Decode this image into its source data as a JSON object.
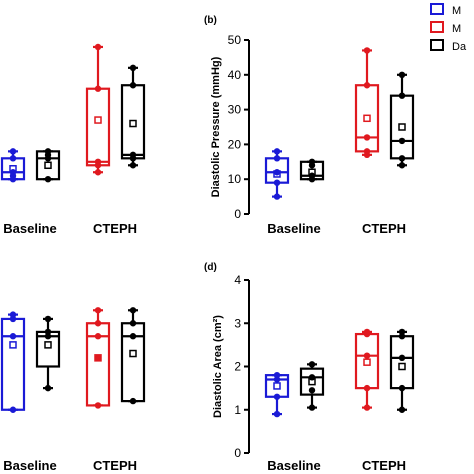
{
  "legend": {
    "entries": [
      {
        "label": "M",
        "color": "#1a1ad6"
      },
      {
        "label": "M",
        "color": "#e0191f"
      },
      {
        "label": "Da",
        "color": "#000000"
      }
    ]
  },
  "colors": {
    "blue": "#1a1ad6",
    "red": "#e0191f",
    "black": "#000000"
  },
  "chart_data": [
    {
      "panel": "",
      "type": "box",
      "ylabel": "",
      "categories": [
        "Baseline",
        "CTEPH"
      ],
      "show_y_axis": false,
      "ylim": [
        0,
        50
      ],
      "series": [
        {
          "color": "#1a1ad6",
          "boxes": [
            {
              "min": 10,
              "q1": 10,
              "median": 12,
              "q3": 16,
              "max": 18,
              "mean": 13,
              "points": [
                10,
                11,
                12,
                16,
                18
              ]
            },
            null
          ]
        },
        {
          "color": "#e0191f",
          "boxes": [
            null,
            {
              "min": 12,
              "q1": 14,
              "median": 15,
              "q3": 36,
              "max": 48,
              "mean": 27,
              "points": [
                12,
                14,
                15,
                36,
                48
              ]
            }
          ]
        },
        {
          "color": "#000000",
          "boxes": [
            {
              "min": 10,
              "q1": 10,
              "median": 16,
              "q3": 18,
              "max": 18,
              "mean": 14,
              "points": [
                10,
                16,
                17,
                18
              ]
            },
            {
              "min": 14,
              "q1": 16,
              "median": 17,
              "q3": 37,
              "max": 42,
              "mean": 26,
              "points": [
                14,
                16,
                17,
                37,
                42
              ]
            }
          ]
        }
      ]
    },
    {
      "panel": "(b)",
      "type": "box",
      "ylabel": "Diastolic Pressure (mmHg)",
      "categories": [
        "Baseline",
        "CTEPH"
      ],
      "show_y_axis": true,
      "ylim": [
        0,
        50
      ],
      "yticks": [
        0,
        10,
        20,
        30,
        40,
        50
      ],
      "series": [
        {
          "color": "#1a1ad6",
          "boxes": [
            {
              "min": 5,
              "q1": 9,
              "median": 12,
              "q3": 16,
              "max": 18,
              "mean": 11.5,
              "points": [
                5,
                9,
                12,
                16,
                18
              ]
            },
            null
          ]
        },
        {
          "color": "#e0191f",
          "boxes": [
            null,
            {
              "min": 17,
              "q1": 18,
              "median": 22,
              "q3": 37,
              "max": 47,
              "mean": 27.5,
              "points": [
                17,
                18,
                22,
                37,
                47
              ]
            }
          ]
        },
        {
          "color": "#000000",
          "boxes": [
            {
              "min": 10,
              "q1": 10,
              "median": 11,
              "q3": 15,
              "max": 15,
              "mean": 12,
              "points": [
                10,
                11,
                14,
                15
              ]
            },
            {
              "min": 14,
              "q1": 16,
              "median": 21,
              "q3": 34,
              "max": 40,
              "mean": 25,
              "points": [
                14,
                16,
                21,
                34,
                40
              ]
            }
          ]
        }
      ]
    },
    {
      "panel": "",
      "type": "box",
      "ylabel": "",
      "categories": [
        "Baseline",
        "CTEPH"
      ],
      "show_y_axis": false,
      "ylim": [
        0,
        4
      ],
      "series": [
        {
          "color": "#1a1ad6",
          "boxes": [
            {
              "min": 1.0,
              "q1": 1.0,
              "median": 2.7,
              "q3": 3.1,
              "max": 3.2,
              "mean": 2.5,
              "points": [
                1.0,
                2.7,
                3.1,
                3.2
              ]
            },
            null
          ]
        },
        {
          "color": "#e0191f",
          "boxes": [
            null,
            {
              "min": 1.1,
              "q1": 1.1,
              "median": 2.7,
              "q3": 3.0,
              "max": 3.3,
              "mean": 2.2,
              "points": [
                1.1,
                2.2,
                2.7,
                3.0,
                3.3
              ]
            }
          ]
        },
        {
          "color": "#000000",
          "boxes": [
            {
              "min": 1.5,
              "q1": 2.0,
              "median": 2.7,
              "q3": 2.8,
              "max": 3.1,
              "mean": 2.5,
              "points": [
                1.5,
                2.7,
                2.8,
                3.1
              ]
            },
            {
              "min": 1.2,
              "q1": 1.2,
              "median": 2.7,
              "q3": 3.0,
              "max": 3.3,
              "mean": 2.3,
              "points": [
                1.2,
                2.7,
                3.0,
                3.3
              ]
            }
          ]
        }
      ]
    },
    {
      "panel": "(d)",
      "type": "box",
      "ylabel": "Diastolic Area (cm²)",
      "categories": [
        "Baseline",
        "CTEPH"
      ],
      "show_y_axis": true,
      "ylim": [
        0,
        4
      ],
      "yticks": [
        0,
        1,
        2,
        3,
        4
      ],
      "series": [
        {
          "color": "#1a1ad6",
          "boxes": [
            {
              "min": 0.9,
              "q1": 1.3,
              "median": 1.7,
              "q3": 1.8,
              "max": 1.8,
              "mean": 1.55,
              "points": [
                0.9,
                1.3,
                1.7,
                1.8
              ]
            },
            null
          ]
        },
        {
          "color": "#e0191f",
          "boxes": [
            null,
            {
              "min": 1.05,
              "q1": 1.5,
              "median": 2.25,
              "q3": 2.75,
              "max": 2.8,
              "mean": 2.1,
              "points": [
                1.05,
                1.5,
                2.25,
                2.75,
                2.8
              ]
            }
          ]
        },
        {
          "color": "#000000",
          "boxes": [
            {
              "min": 1.05,
              "q1": 1.35,
              "median": 1.75,
              "q3": 1.95,
              "max": 2.05,
              "mean": 1.65,
              "points": [
                1.05,
                1.45,
                1.75,
                2.05
              ]
            },
            {
              "min": 1.0,
              "q1": 1.5,
              "median": 2.2,
              "q3": 2.7,
              "max": 2.8,
              "mean": 2.0,
              "points": [
                1.0,
                1.5,
                2.2,
                2.7,
                2.8
              ]
            }
          ]
        }
      ]
    }
  ]
}
